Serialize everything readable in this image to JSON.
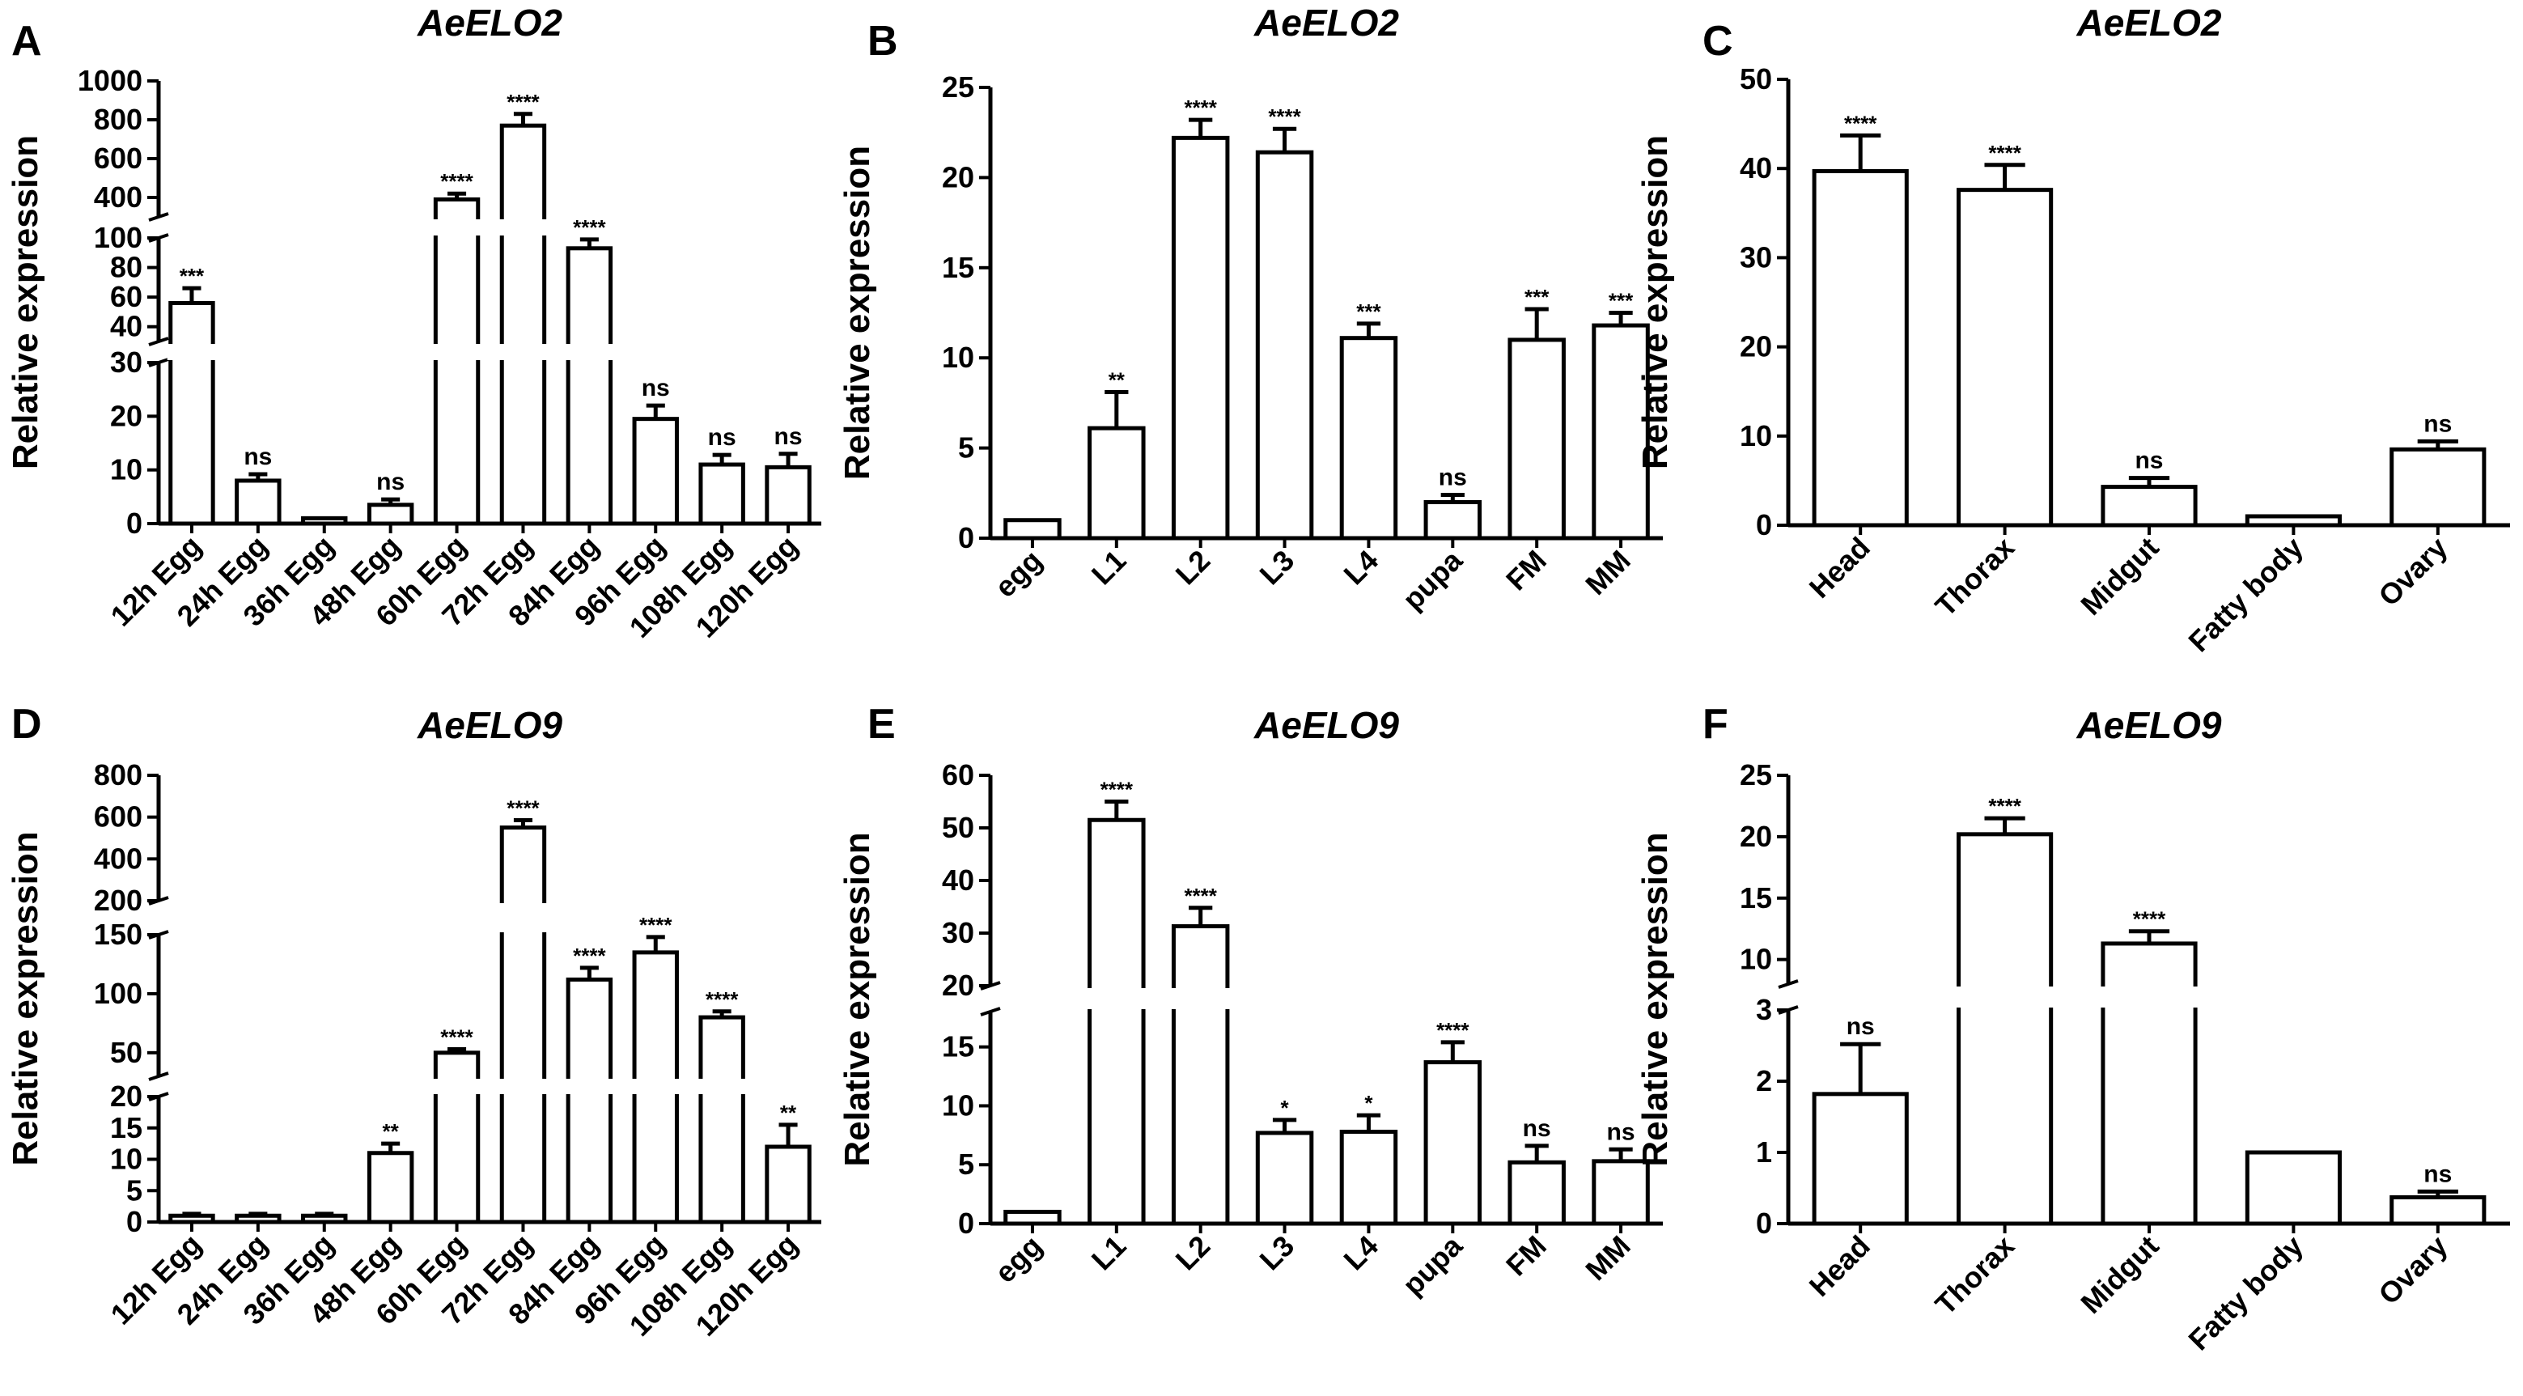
{
  "chart_data": [
    {
      "panel": "A",
      "title": "AeELO2",
      "type": "bar",
      "ylabel": "Relative expression",
      "categories": [
        "12h Egg",
        "24h Egg",
        "36h Egg",
        "48h Egg",
        "60h Egg",
        "72h Egg",
        "84h Egg",
        "96h Egg",
        "108h Egg",
        "120h Egg"
      ],
      "values": [
        56,
        8,
        1,
        3.5,
        390,
        770,
        93,
        19.5,
        11,
        10.5
      ],
      "errors": [
        10,
        1.2,
        0,
        1,
        30,
        60,
        6,
        2.5,
        1.8,
        2.5
      ],
      "significance": [
        "***",
        "ns",
        "",
        "ns",
        "****",
        "****",
        "****",
        "ns",
        "ns",
        "ns"
      ],
      "segments": [
        {
          "range": [
            0,
            30
          ],
          "ticks": [
            0,
            10,
            20,
            30
          ]
        },
        {
          "range": [
            30,
            100
          ],
          "ticks": [
            40,
            60,
            80,
            100
          ]
        },
        {
          "range": [
            300,
            1000
          ],
          "ticks": [
            400,
            600,
            800,
            1000
          ]
        }
      ]
    },
    {
      "panel": "B",
      "title": "AeELO2",
      "type": "bar",
      "ylabel": "Relative expression",
      "categories": [
        "egg",
        "L1",
        "L2",
        "L3",
        "L4",
        "pupa",
        "FM",
        "MM"
      ],
      "values": [
        1,
        6.1,
        22.2,
        21.4,
        11.1,
        2.0,
        11.0,
        11.8
      ],
      "errors": [
        0,
        2.0,
        1.0,
        1.3,
        0.8,
        0.4,
        1.7,
        0.7
      ],
      "significance": [
        "",
        "**",
        "****",
        "****",
        "***",
        "ns",
        "***",
        "***"
      ],
      "ylim": [
        0,
        25
      ],
      "yticks": [
        0,
        5,
        10,
        15,
        20,
        25
      ]
    },
    {
      "panel": "C",
      "title": "AeELO2",
      "type": "bar",
      "ylabel": "Relative expression",
      "categories": [
        "Head",
        "Thorax",
        "Midgut",
        "Fatty body",
        "Ovary"
      ],
      "values": [
        39.7,
        37.6,
        4.3,
        1,
        8.5
      ],
      "errors": [
        4.0,
        2.8,
        1.0,
        0,
        0.9
      ],
      "significance": [
        "****",
        "****",
        "ns",
        "",
        "ns"
      ],
      "ylim": [
        0,
        50
      ],
      "yticks": [
        0,
        10,
        20,
        30,
        40,
        50
      ]
    },
    {
      "panel": "D",
      "title": "AeELO9",
      "type": "bar",
      "ylabel": "Relative expression",
      "categories": [
        "12h Egg",
        "24h Egg",
        "36h Egg",
        "48h Egg",
        "60h Egg",
        "72h Egg",
        "84h Egg",
        "96h Egg",
        "108h Egg",
        "120h Egg"
      ],
      "values": [
        1,
        1,
        1,
        11,
        50,
        550,
        112,
        135,
        80,
        12
      ],
      "errors": [
        0.3,
        0.3,
        0.3,
        1.5,
        3,
        35,
        10,
        13,
        5,
        3.5
      ],
      "significance": [
        "",
        "",
        "",
        "**",
        "****",
        "****",
        "****",
        "****",
        "****",
        "**"
      ],
      "segments": [
        {
          "range": [
            0,
            20
          ],
          "ticks": [
            0,
            5,
            10,
            15,
            20
          ]
        },
        {
          "range": [
            30,
            150
          ],
          "ticks": [
            50,
            100,
            150
          ]
        },
        {
          "range": [
            200,
            800
          ],
          "ticks": [
            200,
            400,
            600,
            800
          ]
        }
      ]
    },
    {
      "panel": "E",
      "title": "AeELO9",
      "type": "bar",
      "ylabel": "Relative expression",
      "categories": [
        "egg",
        "L1",
        "L2",
        "L3",
        "L4",
        "pupa",
        "FM",
        "MM"
      ],
      "values": [
        1,
        51.5,
        31.3,
        7.7,
        7.8,
        13.7,
        5.2,
        5.3
      ],
      "errors": [
        0,
        3.5,
        3.5,
        1.1,
        1.4,
        1.7,
        1.4,
        1.0
      ],
      "significance": [
        "",
        "****",
        "****",
        "*",
        "*",
        "****",
        "ns",
        "ns"
      ],
      "segments": [
        {
          "range": [
            0,
            18
          ],
          "ticks": [
            0,
            5,
            10,
            15
          ]
        },
        {
          "range": [
            20,
            60
          ],
          "ticks": [
            20,
            30,
            40,
            50,
            60
          ]
        }
      ]
    },
    {
      "panel": "F",
      "title": "AeELO9",
      "type": "bar",
      "ylabel": "Relative expression",
      "categories": [
        "Head",
        "Thorax",
        "Midgut",
        "Fatty body",
        "Ovary"
      ],
      "values": [
        1.82,
        20.2,
        11.3,
        1,
        0.37
      ],
      "errors": [
        0.7,
        1.3,
        1.0,
        0,
        0.08
      ],
      "significance": [
        "ns",
        "****",
        "****",
        "",
        "ns"
      ],
      "segments": [
        {
          "range": [
            0,
            3
          ],
          "ticks": [
            0,
            1,
            2,
            3
          ]
        },
        {
          "range": [
            8,
            25
          ],
          "ticks": [
            10,
            15,
            20,
            25
          ]
        }
      ]
    }
  ]
}
